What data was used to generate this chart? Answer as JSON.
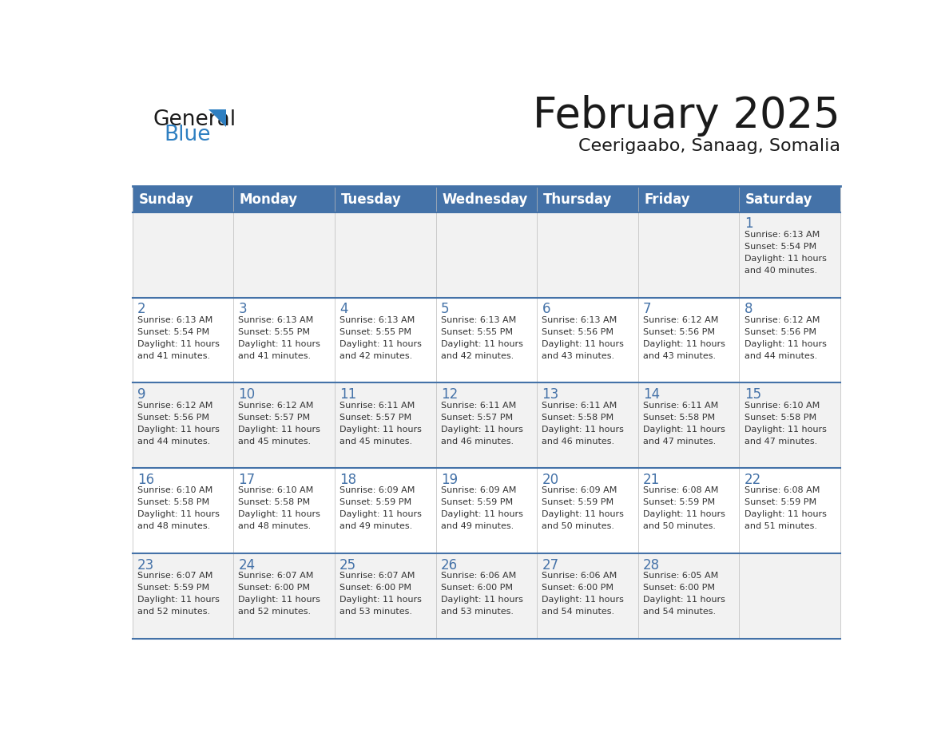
{
  "title": "February 2025",
  "subtitle": "Ceerigaabo, Sanaag, Somalia",
  "header_bg": "#4472a8",
  "header_text_color": "#ffffff",
  "day_number_color": "#4472a8",
  "text_color": "#333333",
  "line_color": "#4472a8",
  "days_of_week": [
    "Sunday",
    "Monday",
    "Tuesday",
    "Wednesday",
    "Thursday",
    "Friday",
    "Saturday"
  ],
  "weeks": [
    [
      {
        "day": null,
        "sunrise": null,
        "sunset": null,
        "daylight": null
      },
      {
        "day": null,
        "sunrise": null,
        "sunset": null,
        "daylight": null
      },
      {
        "day": null,
        "sunrise": null,
        "sunset": null,
        "daylight": null
      },
      {
        "day": null,
        "sunrise": null,
        "sunset": null,
        "daylight": null
      },
      {
        "day": null,
        "sunrise": null,
        "sunset": null,
        "daylight": null
      },
      {
        "day": null,
        "sunrise": null,
        "sunset": null,
        "daylight": null
      },
      {
        "day": 1,
        "sunrise": "6:13 AM",
        "sunset": "5:54 PM",
        "daylight": "11 hours\nand 40 minutes."
      }
    ],
    [
      {
        "day": 2,
        "sunrise": "6:13 AM",
        "sunset": "5:54 PM",
        "daylight": "11 hours\nand 41 minutes."
      },
      {
        "day": 3,
        "sunrise": "6:13 AM",
        "sunset": "5:55 PM",
        "daylight": "11 hours\nand 41 minutes."
      },
      {
        "day": 4,
        "sunrise": "6:13 AM",
        "sunset": "5:55 PM",
        "daylight": "11 hours\nand 42 minutes."
      },
      {
        "day": 5,
        "sunrise": "6:13 AM",
        "sunset": "5:55 PM",
        "daylight": "11 hours\nand 42 minutes."
      },
      {
        "day": 6,
        "sunrise": "6:13 AM",
        "sunset": "5:56 PM",
        "daylight": "11 hours\nand 43 minutes."
      },
      {
        "day": 7,
        "sunrise": "6:12 AM",
        "sunset": "5:56 PM",
        "daylight": "11 hours\nand 43 minutes."
      },
      {
        "day": 8,
        "sunrise": "6:12 AM",
        "sunset": "5:56 PM",
        "daylight": "11 hours\nand 44 minutes."
      }
    ],
    [
      {
        "day": 9,
        "sunrise": "6:12 AM",
        "sunset": "5:56 PM",
        "daylight": "11 hours\nand 44 minutes."
      },
      {
        "day": 10,
        "sunrise": "6:12 AM",
        "sunset": "5:57 PM",
        "daylight": "11 hours\nand 45 minutes."
      },
      {
        "day": 11,
        "sunrise": "6:11 AM",
        "sunset": "5:57 PM",
        "daylight": "11 hours\nand 45 minutes."
      },
      {
        "day": 12,
        "sunrise": "6:11 AM",
        "sunset": "5:57 PM",
        "daylight": "11 hours\nand 46 minutes."
      },
      {
        "day": 13,
        "sunrise": "6:11 AM",
        "sunset": "5:58 PM",
        "daylight": "11 hours\nand 46 minutes."
      },
      {
        "day": 14,
        "sunrise": "6:11 AM",
        "sunset": "5:58 PM",
        "daylight": "11 hours\nand 47 minutes."
      },
      {
        "day": 15,
        "sunrise": "6:10 AM",
        "sunset": "5:58 PM",
        "daylight": "11 hours\nand 47 minutes."
      }
    ],
    [
      {
        "day": 16,
        "sunrise": "6:10 AM",
        "sunset": "5:58 PM",
        "daylight": "11 hours\nand 48 minutes."
      },
      {
        "day": 17,
        "sunrise": "6:10 AM",
        "sunset": "5:58 PM",
        "daylight": "11 hours\nand 48 minutes."
      },
      {
        "day": 18,
        "sunrise": "6:09 AM",
        "sunset": "5:59 PM",
        "daylight": "11 hours\nand 49 minutes."
      },
      {
        "day": 19,
        "sunrise": "6:09 AM",
        "sunset": "5:59 PM",
        "daylight": "11 hours\nand 49 minutes."
      },
      {
        "day": 20,
        "sunrise": "6:09 AM",
        "sunset": "5:59 PM",
        "daylight": "11 hours\nand 50 minutes."
      },
      {
        "day": 21,
        "sunrise": "6:08 AM",
        "sunset": "5:59 PM",
        "daylight": "11 hours\nand 50 minutes."
      },
      {
        "day": 22,
        "sunrise": "6:08 AM",
        "sunset": "5:59 PM",
        "daylight": "11 hours\nand 51 minutes."
      }
    ],
    [
      {
        "day": 23,
        "sunrise": "6:07 AM",
        "sunset": "5:59 PM",
        "daylight": "11 hours\nand 52 minutes."
      },
      {
        "day": 24,
        "sunrise": "6:07 AM",
        "sunset": "6:00 PM",
        "daylight": "11 hours\nand 52 minutes."
      },
      {
        "day": 25,
        "sunrise": "6:07 AM",
        "sunset": "6:00 PM",
        "daylight": "11 hours\nand 53 minutes."
      },
      {
        "day": 26,
        "sunrise": "6:06 AM",
        "sunset": "6:00 PM",
        "daylight": "11 hours\nand 53 minutes."
      },
      {
        "day": 27,
        "sunrise": "6:06 AM",
        "sunset": "6:00 PM",
        "daylight": "11 hours\nand 54 minutes."
      },
      {
        "day": 28,
        "sunrise": "6:05 AM",
        "sunset": "6:00 PM",
        "daylight": "11 hours\nand 54 minutes."
      },
      {
        "day": null,
        "sunrise": null,
        "sunset": null,
        "daylight": null
      }
    ]
  ],
  "logo_general_color": "#1a1a1a",
  "logo_blue_color": "#2e7fc1",
  "logo_triangle_color": "#2e7fc1",
  "bg_color": "#ffffff",
  "cell_bg": "#f2f2f2"
}
